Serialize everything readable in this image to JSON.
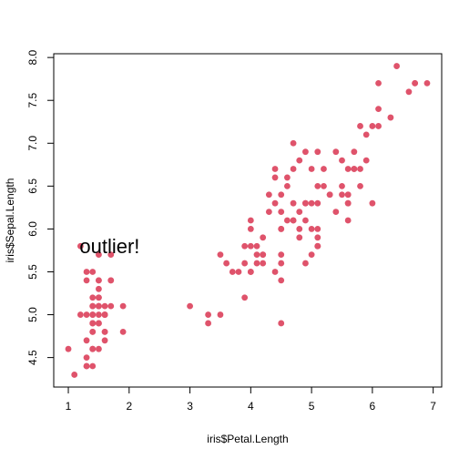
{
  "chart_data": {
    "type": "scatter",
    "title": "",
    "xlabel": "iris$Petal.Length",
    "ylabel": "iris$Sepal.Length",
    "xlim": [
      0.76,
      7.14
    ],
    "ylim": [
      4.156,
      8.044
    ],
    "xticks": [
      "1",
      "2",
      "3",
      "4",
      "5",
      "6",
      "7"
    ],
    "yticks": [
      "4.5",
      "5.0",
      "5.5",
      "6.0",
      "6.5",
      "7.0",
      "7.5",
      "8.0"
    ],
    "grid": false,
    "point_color": "#DF536B",
    "annotation": {
      "text": "outlier!",
      "x": 1.2,
      "y": 5.8
    },
    "points": [
      [
        1.4,
        5.1
      ],
      [
        1.4,
        4.9
      ],
      [
        1.3,
        4.7
      ],
      [
        1.5,
        4.6
      ],
      [
        1.4,
        5.0
      ],
      [
        1.7,
        5.4
      ],
      [
        1.4,
        4.6
      ],
      [
        1.5,
        5.0
      ],
      [
        1.4,
        4.4
      ],
      [
        1.5,
        4.9
      ],
      [
        1.5,
        5.4
      ],
      [
        1.6,
        4.8
      ],
      [
        1.4,
        4.8
      ],
      [
        1.1,
        4.3
      ],
      [
        1.2,
        5.8
      ],
      [
        1.5,
        5.7
      ],
      [
        1.3,
        5.4
      ],
      [
        1.4,
        5.1
      ],
      [
        1.7,
        5.7
      ],
      [
        1.5,
        5.1
      ],
      [
        1.7,
        5.4
      ],
      [
        1.5,
        5.1
      ],
      [
        1.0,
        4.6
      ],
      [
        1.7,
        5.1
      ],
      [
        1.9,
        4.8
      ],
      [
        1.6,
        5.0
      ],
      [
        1.6,
        5.0
      ],
      [
        1.5,
        5.2
      ],
      [
        1.4,
        5.2
      ],
      [
        1.6,
        4.7
      ],
      [
        1.6,
        4.8
      ],
      [
        1.5,
        5.4
      ],
      [
        1.5,
        5.2
      ],
      [
        1.4,
        5.5
      ],
      [
        1.5,
        4.9
      ],
      [
        1.2,
        5.0
      ],
      [
        1.3,
        5.5
      ],
      [
        1.4,
        4.9
      ],
      [
        1.3,
        4.4
      ],
      [
        1.5,
        5.1
      ],
      [
        1.3,
        5.0
      ],
      [
        1.3,
        4.5
      ],
      [
        1.3,
        4.4
      ],
      [
        1.6,
        5.0
      ],
      [
        1.9,
        5.1
      ],
      [
        1.4,
        4.8
      ],
      [
        1.6,
        5.1
      ],
      [
        1.4,
        4.6
      ],
      [
        1.5,
        5.3
      ],
      [
        1.4,
        5.0
      ],
      [
        4.7,
        7.0
      ],
      [
        4.5,
        6.4
      ],
      [
        4.9,
        6.9
      ],
      [
        4.0,
        5.5
      ],
      [
        4.6,
        6.5
      ],
      [
        4.5,
        5.7
      ],
      [
        4.7,
        6.3
      ],
      [
        3.3,
        4.9
      ],
      [
        4.6,
        6.6
      ],
      [
        3.9,
        5.2
      ],
      [
        3.5,
        5.0
      ],
      [
        4.2,
        5.9
      ],
      [
        4.0,
        6.0
      ],
      [
        4.7,
        6.1
      ],
      [
        3.6,
        5.6
      ],
      [
        4.4,
        6.7
      ],
      [
        4.5,
        5.6
      ],
      [
        4.1,
        5.8
      ],
      [
        4.5,
        6.2
      ],
      [
        3.9,
        5.6
      ],
      [
        4.8,
        5.9
      ],
      [
        4.0,
        6.1
      ],
      [
        4.9,
        6.3
      ],
      [
        4.7,
        6.1
      ],
      [
        4.3,
        6.4
      ],
      [
        4.4,
        6.6
      ],
      [
        4.8,
        6.8
      ],
      [
        5.0,
        6.7
      ],
      [
        4.5,
        6.0
      ],
      [
        3.5,
        5.7
      ],
      [
        3.8,
        5.5
      ],
      [
        3.7,
        5.5
      ],
      [
        3.9,
        5.8
      ],
      [
        5.1,
        6.0
      ],
      [
        4.5,
        5.4
      ],
      [
        4.5,
        6.0
      ],
      [
        4.7,
        6.7
      ],
      [
        4.4,
        6.3
      ],
      [
        4.1,
        5.6
      ],
      [
        4.0,
        5.5
      ],
      [
        4.4,
        5.5
      ],
      [
        4.6,
        6.1
      ],
      [
        4.0,
        5.8
      ],
      [
        3.3,
        5.0
      ],
      [
        4.2,
        5.6
      ],
      [
        4.2,
        5.7
      ],
      [
        4.2,
        5.7
      ],
      [
        4.3,
        6.2
      ],
      [
        3.0,
        5.1
      ],
      [
        4.1,
        5.7
      ],
      [
        6.0,
        6.3
      ],
      [
        5.1,
        5.8
      ],
      [
        5.9,
        7.1
      ],
      [
        5.6,
        6.3
      ],
      [
        5.8,
        6.5
      ],
      [
        6.6,
        7.6
      ],
      [
        4.5,
        4.9
      ],
      [
        6.3,
        7.3
      ],
      [
        5.8,
        6.7
      ],
      [
        6.1,
        7.2
      ],
      [
        5.1,
        6.5
      ],
      [
        5.3,
        6.4
      ],
      [
        5.5,
        6.8
      ],
      [
        5.0,
        5.7
      ],
      [
        5.1,
        5.8
      ],
      [
        5.3,
        6.4
      ],
      [
        5.5,
        6.5
      ],
      [
        6.7,
        7.7
      ],
      [
        6.9,
        7.7
      ],
      [
        5.0,
        6.0
      ],
      [
        5.7,
        6.9
      ],
      [
        4.9,
        5.6
      ],
      [
        6.7,
        7.7
      ],
      [
        4.9,
        6.3
      ],
      [
        5.7,
        6.7
      ],
      [
        6.0,
        7.2
      ],
      [
        4.8,
        6.2
      ],
      [
        4.9,
        6.1
      ],
      [
        5.6,
        6.4
      ],
      [
        5.8,
        7.2
      ],
      [
        6.1,
        7.4
      ],
      [
        6.4,
        7.9
      ],
      [
        5.6,
        6.4
      ],
      [
        5.1,
        6.3
      ],
      [
        5.6,
        6.1
      ],
      [
        6.1,
        7.7
      ],
      [
        5.6,
        6.3
      ],
      [
        5.5,
        6.4
      ],
      [
        4.8,
        6.0
      ],
      [
        5.4,
        6.9
      ],
      [
        5.6,
        6.7
      ],
      [
        5.1,
        6.9
      ],
      [
        5.1,
        5.8
      ],
      [
        5.9,
        6.8
      ],
      [
        5.7,
        6.7
      ],
      [
        5.2,
        6.7
      ],
      [
        5.0,
        6.3
      ],
      [
        5.2,
        6.5
      ],
      [
        5.4,
        6.2
      ],
      [
        5.1,
        5.9
      ]
    ]
  }
}
